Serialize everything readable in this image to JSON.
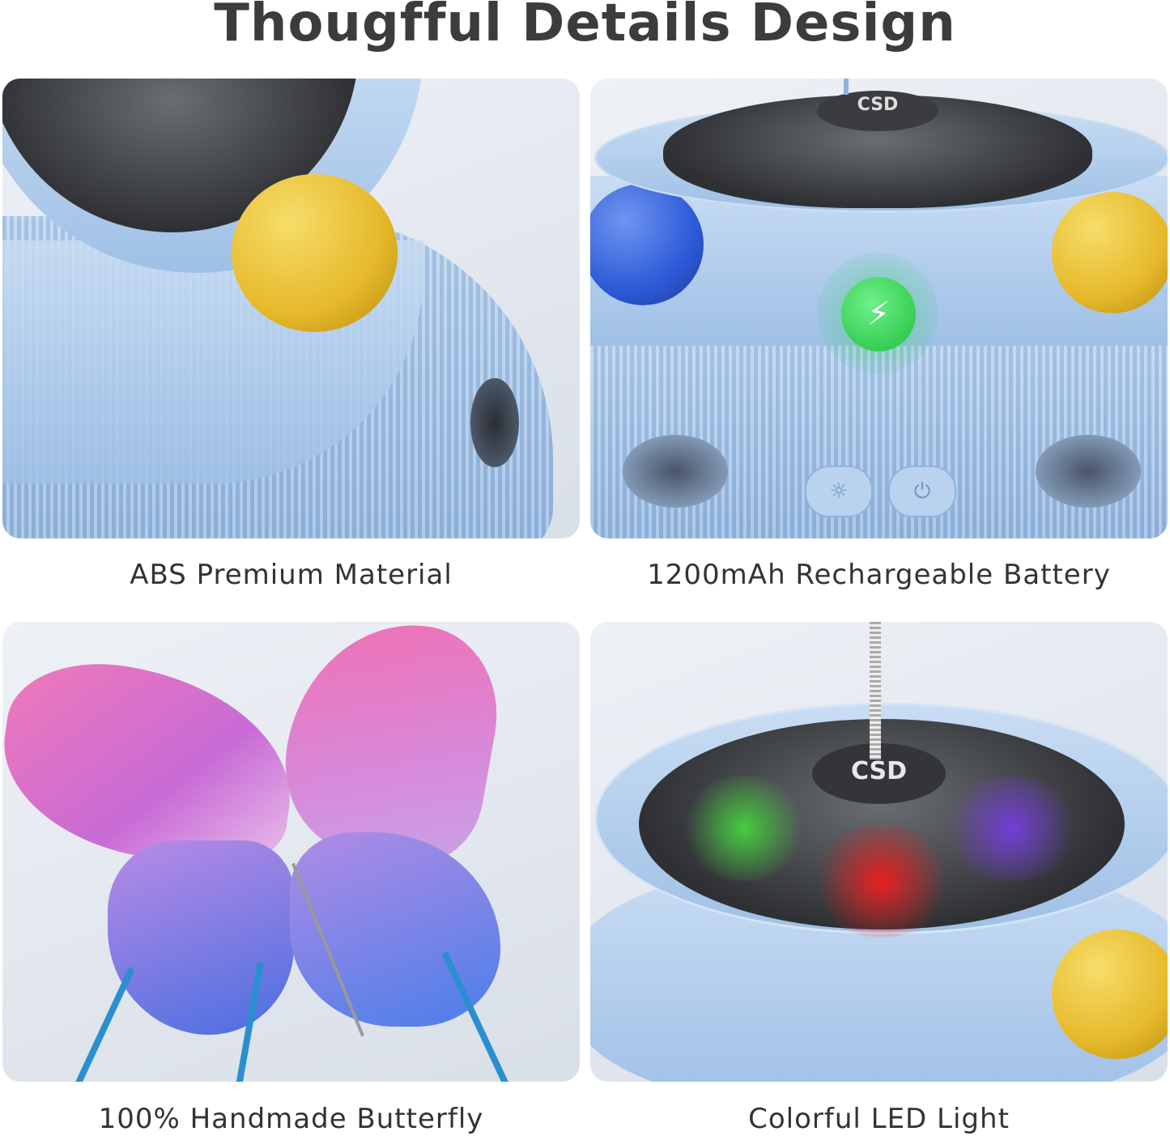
{
  "title": "Thougfful Details Design",
  "panels": [
    {
      "caption": "ABS Premium Material"
    },
    {
      "caption": "1200mAh Rechargeable Battery",
      "logo": "CSD",
      "icons": [
        "lightning-icon",
        "light-mode-icon",
        "power-icon"
      ]
    },
    {
      "caption": "100% Handmade Butterfly"
    },
    {
      "caption": "Colorful LED Light",
      "logo": "CSD"
    }
  ],
  "colors": {
    "title": "#3c3c3c",
    "toy_blue": "#a9c8ea",
    "ball_yellow": "#e6b92a",
    "ball_blue": "#2d5bd8",
    "charge_green": "#27d24a"
  }
}
